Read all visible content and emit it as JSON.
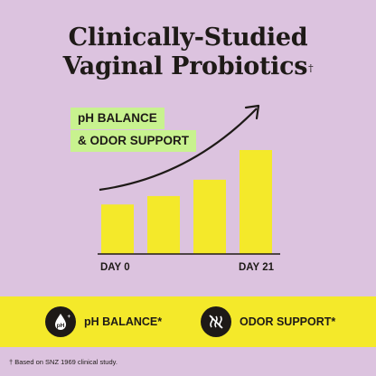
{
  "title": {
    "line1": "Clinically-Studied",
    "line2": "Vaginal Probiotics",
    "dagger": "†"
  },
  "tags": [
    "pH BALANCE",
    "& ODOR SUPPORT"
  ],
  "chart_data": {
    "type": "bar",
    "categories": [
      "DAY 0",
      "",
      "",
      "DAY 21"
    ],
    "values": [
      1,
      1.17,
      1.5,
      2.1
    ],
    "bar_color": "#f4e92a",
    "trend_arrow": true
  },
  "axis_labels": {
    "start": "DAY 0",
    "end": "DAY 21"
  },
  "features": [
    {
      "icon": "ph-drop-icon",
      "label": "pH BALANCE*"
    },
    {
      "icon": "odor-waves-icon",
      "label": "ODOR SUPPORT*"
    }
  ],
  "footnote": "† Based on SNZ 1969 clinical study.",
  "colors": {
    "background": "#dcc3df",
    "accent_yellow": "#f4e92a",
    "tag_green": "#c8f28f",
    "ink": "#1e1a17"
  }
}
